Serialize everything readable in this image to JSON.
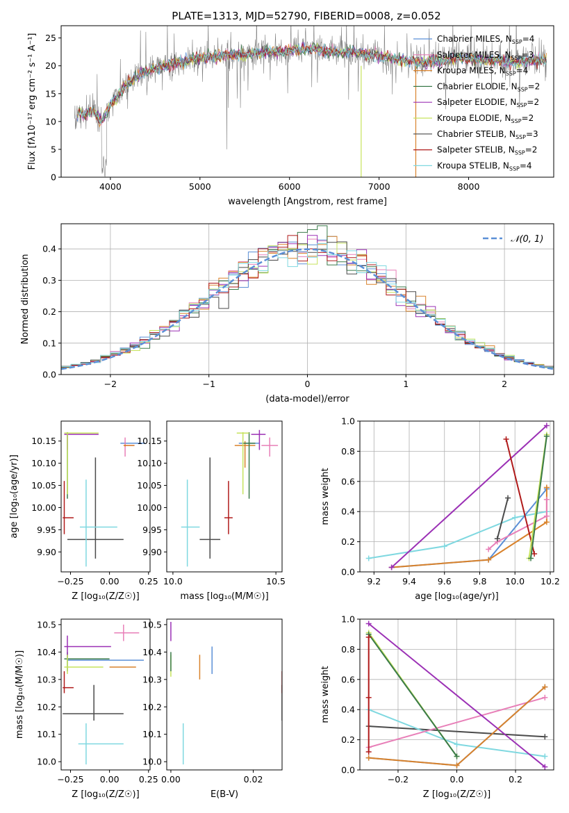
{
  "figure_title": "PLATE=1313, MJD=52790, FIBERID=0008, z=0.052",
  "models": [
    {
      "label": "Chabrier MILES, N",
      "n": "4",
      "color": "#5b8fd6"
    },
    {
      "label": "Salpeter MILES, N",
      "n": "3",
      "color": "#e87fb8"
    },
    {
      "label": "Kroupa MILES, N",
      "n": "4",
      "color": "#d9822b"
    },
    {
      "label": "Chabrier ELODIE, N",
      "n": "2",
      "color": "#3a7a4a"
    },
    {
      "label": "Salpeter ELODIE, N",
      "n": "2",
      "color": "#9b30b5"
    },
    {
      "label": "Kroupa ELODIE, N",
      "n": "2",
      "color": "#c6e35c"
    },
    {
      "label": "Chabrier STELIB, N",
      "n": "3",
      "color": "#4a4a4a"
    },
    {
      "label": "Salpeter STELIB, N",
      "n": "2",
      "color": "#b01a1a"
    },
    {
      "label": "Kroupa STELIB, N",
      "n": "4",
      "color": "#7fd8e0"
    }
  ],
  "legend_sub": "SSP",
  "normal_label": "𝒩(0, 1)",
  "chart_data": [
    {
      "id": "spectrum",
      "type": "line",
      "xlabel": "wavelength [Angstrom, rest frame]",
      "ylabel": "Flux [fλ10⁻¹⁷ erg cm⁻² s⁻¹ A⁻¹]",
      "xlim": [
        3450,
        8950
      ],
      "ylim": [
        0,
        27.2
      ],
      "xticks": [
        4000,
        5000,
        6000,
        7000,
        8000
      ],
      "yticks": [
        0,
        5,
        10,
        15,
        20,
        25
      ],
      "data_color": "#808080",
      "model_nodes": [
        [
          3600,
          9
        ],
        [
          3650,
          12
        ],
        [
          3700,
          11
        ],
        [
          3800,
          12
        ],
        [
          3900,
          10
        ],
        [
          4000,
          13
        ],
        [
          4100,
          15
        ],
        [
          4200,
          17
        ],
        [
          4300,
          18
        ],
        [
          4400,
          19
        ],
        [
          4500,
          19.5
        ],
        [
          4700,
          20.5
        ],
        [
          4900,
          21
        ],
        [
          5100,
          21.5
        ],
        [
          5300,
          22
        ],
        [
          5500,
          22
        ],
        [
          5700,
          22.5
        ],
        [
          5900,
          22.5
        ],
        [
          6100,
          23
        ],
        [
          6300,
          23
        ],
        [
          6500,
          22.5
        ],
        [
          6700,
          22.5
        ],
        [
          6900,
          22
        ],
        [
          7100,
          21.5
        ],
        [
          7300,
          21
        ],
        [
          7500,
          20.5
        ],
        [
          7700,
          21
        ],
        [
          7900,
          21.5
        ],
        [
          8100,
          21
        ],
        [
          8300,
          21
        ],
        [
          8500,
          20.5
        ],
        [
          8700,
          21
        ],
        [
          8850,
          21
        ]
      ],
      "legend": "upper right"
    },
    {
      "id": "residual_hist",
      "type": "step",
      "xlabel": "(data-model)/error",
      "ylabel": "Normed distribution",
      "xlim": [
        -2.5,
        2.5
      ],
      "ylim": [
        0,
        0.48
      ],
      "xticks": [
        -2,
        -1,
        0,
        1,
        2
      ],
      "yticks": [
        0.0,
        0.1,
        0.2,
        0.3,
        0.4
      ],
      "bin_width": 0.1,
      "grid": true,
      "legend": "upper right"
    },
    {
      "id": "age_vs_Z",
      "type": "errorbar",
      "xlabel": "Z [log₁₀(Z/Z☉)]",
      "ylabel": "age  [log₁₀(age/yr)]",
      "xlim": [
        -0.31,
        0.26
      ],
      "ylim": [
        9.855,
        10.195
      ],
      "xticks": [
        -0.25,
        0.0,
        0.25
      ],
      "xticklabels": [
        "−0.25",
        "0.00",
        "0.25"
      ],
      "yticks": [
        9.9,
        9.95,
        10.0,
        10.05,
        10.1,
        10.15
      ],
      "yticklabels": [
        "9.90",
        "9.95",
        "10.00",
        "10.05",
        "10.10",
        "10.15"
      ],
      "points": [
        {
          "m": 0,
          "x": 0.1,
          "xl": 0.07,
          "xh": 0.23,
          "y": 10.145,
          "yl": 10.143,
          "yh": 10.147
        },
        {
          "m": 1,
          "x": 0.1,
          "xl": 0.1,
          "xh": 0.16,
          "y": 10.14,
          "yl": 10.115,
          "yh": 10.158
        },
        {
          "m": 2,
          "x": 0.1,
          "xl": 0.09,
          "xh": 0.16,
          "y": 10.14,
          "yl": 10.138,
          "yh": 10.142
        },
        {
          "m": 3,
          "x": -0.27,
          "xl": -0.29,
          "xh": -0.26,
          "y": 10.168,
          "yl": 10.02,
          "yh": 10.17
        },
        {
          "m": 4,
          "x": -0.27,
          "xl": -0.29,
          "xh": -0.07,
          "y": 10.165,
          "yl": 10.13,
          "yh": 10.17
        },
        {
          "m": 5,
          "x": -0.27,
          "xl": -0.29,
          "xh": -0.07,
          "y": 10.168,
          "yl": 10.03,
          "yh": 10.17
        },
        {
          "m": 6,
          "x": -0.09,
          "xl": -0.27,
          "xh": 0.09,
          "y": 9.928,
          "yl": 9.885,
          "yh": 10.113
        },
        {
          "m": 7,
          "x": -0.29,
          "xl": -0.3,
          "xh": -0.23,
          "y": 9.977,
          "yl": 9.94,
          "yh": 10.06
        },
        {
          "m": 8,
          "x": -0.15,
          "xl": -0.19,
          "xh": 0.05,
          "y": 9.956,
          "yl": 9.867,
          "yh": 10.063
        }
      ]
    },
    {
      "id": "age_vs_mass",
      "type": "errorbar",
      "xlabel": "mass [log₁₀(M/M☉)]",
      "ylabel": "",
      "xlim": [
        9.97,
        10.53
      ],
      "ylim": [
        9.855,
        10.195
      ],
      "xticks": [
        10.0,
        10.5
      ],
      "xticklabels": [
        "10.0",
        "10.5"
      ],
      "yticks": [
        9.9,
        9.95,
        10.0,
        10.05,
        10.1,
        10.15
      ],
      "yticklabels": [
        "9.90",
        "9.95",
        "10.00",
        "10.05",
        "10.10",
        "10.15"
      ],
      "points": [
        {
          "m": 0,
          "x": 10.37,
          "xl": 10.32,
          "xh": 10.42,
          "y": 10.145,
          "yl": 10.143,
          "yh": 10.147
        },
        {
          "m": 1,
          "x": 10.47,
          "xl": 10.43,
          "xh": 10.51,
          "y": 10.14,
          "yl": 10.115,
          "yh": 10.158
        },
        {
          "m": 2,
          "x": 10.35,
          "xl": 10.3,
          "xh": 10.4,
          "y": 10.14,
          "yl": 10.09,
          "yh": 10.15
        },
        {
          "m": 3,
          "x": 10.37,
          "xl": 10.34,
          "xh": 10.4,
          "y": 10.145,
          "yl": 10.02,
          "yh": 10.17
        },
        {
          "m": 4,
          "x": 10.42,
          "xl": 10.38,
          "xh": 10.45,
          "y": 10.165,
          "yl": 10.13,
          "yh": 10.175
        },
        {
          "m": 5,
          "x": 10.34,
          "xl": 10.31,
          "xh": 10.37,
          "y": 10.168,
          "yl": 10.03,
          "yh": 10.17
        },
        {
          "m": 6,
          "x": 10.18,
          "xl": 10.13,
          "xh": 10.23,
          "y": 9.928,
          "yl": 9.885,
          "yh": 10.113
        },
        {
          "m": 7,
          "x": 10.27,
          "xl": 10.25,
          "xh": 10.29,
          "y": 9.977,
          "yl": 9.94,
          "yh": 10.06
        },
        {
          "m": 8,
          "x": 10.07,
          "xl": 10.04,
          "xh": 10.13,
          "y": 9.956,
          "yl": 9.867,
          "yh": 10.063
        }
      ]
    },
    {
      "id": "massweight_vs_age",
      "type": "line",
      "xlabel": "age  [log₁₀(age/yr)]",
      "ylabel": "mass weight",
      "xlim": [
        9.12,
        10.22
      ],
      "ylim": [
        0,
        1.0
      ],
      "xticks": [
        9.2,
        9.4,
        9.6,
        9.8,
        10.0,
        10.2
      ],
      "xticklabels": [
        "9.2",
        "9.4",
        "9.6",
        "9.8",
        "10.0",
        "10.2"
      ],
      "yticks": [
        0,
        0.2,
        0.4,
        0.6,
        0.8,
        1.0
      ],
      "yticklabels": [
        "0.0",
        "0.2",
        "0.4",
        "0.6",
        "0.8",
        "1.0"
      ],
      "grid": true,
      "series": [
        {
          "m": 8,
          "x": [
            9.17,
            9.6,
            10.0,
            10.18
          ],
          "y": [
            0.09,
            0.17,
            0.36,
            0.4
          ]
        },
        {
          "m": 0,
          "x": [
            9.3,
            9.85,
            10.18
          ],
          "y": [
            0.03,
            0.08,
            0.55
          ]
        },
        {
          "m": 2,
          "x": [
            9.3,
            9.85,
            10.18,
            10.18
          ],
          "y": [
            0.03,
            0.08,
            0.33,
            0.56
          ]
        },
        {
          "m": 1,
          "x": [
            9.85,
            9.9,
            10.18,
            10.18
          ],
          "y": [
            0.15,
            0.2,
            0.37,
            0.48
          ]
        },
        {
          "m": 6,
          "x": [
            9.9,
            9.96
          ],
          "y": [
            0.22,
            0.49
          ]
        },
        {
          "m": 4,
          "x": [
            9.3,
            10.18
          ],
          "y": [
            0.03,
            0.97
          ]
        },
        {
          "m": 7,
          "x": [
            9.95,
            10.11
          ],
          "y": [
            0.88,
            0.12
          ]
        },
        {
          "m": 5,
          "x": [
            10.08,
            10.18
          ],
          "y": [
            0.09,
            0.91
          ]
        },
        {
          "m": 3,
          "x": [
            10.09,
            10.18
          ],
          "y": [
            0.09,
            0.9
          ]
        }
      ]
    },
    {
      "id": "mass_vs_Z",
      "type": "errorbar",
      "xlabel": "Z [log₁₀(Z/Z☉)]",
      "ylabel": "mass [log₁₀(M/M☉)]",
      "xlim": [
        -0.31,
        0.26
      ],
      "ylim": [
        9.97,
        10.52
      ],
      "xticks": [
        -0.25,
        0.0,
        0.25
      ],
      "xticklabels": [
        "−0.25",
        "0.00",
        "0.25"
      ],
      "yticks": [
        10.0,
        10.1,
        10.2,
        10.3,
        10.4,
        10.5
      ],
      "yticklabels": [
        "10.0",
        "10.1",
        "10.2",
        "10.3",
        "10.4",
        "10.5"
      ],
      "points": [
        {
          "m": 0,
          "x": 0.0,
          "xl": -0.27,
          "xh": 0.22,
          "y": 10.37,
          "yl": 10.37,
          "yh": 10.37
        },
        {
          "m": 1,
          "x": 0.09,
          "xl": 0.03,
          "xh": 0.19,
          "y": 10.47,
          "yl": 10.44,
          "yh": 10.5
        },
        {
          "m": 2,
          "x": 0.08,
          "xl": 0.0,
          "xh": 0.17,
          "y": 10.345,
          "yl": 10.345,
          "yh": 10.345
        },
        {
          "m": 3,
          "x": -0.27,
          "xl": -0.29,
          "xh": 0.0,
          "y": 10.375,
          "yl": 10.33,
          "yh": 10.4
        },
        {
          "m": 4,
          "x": -0.27,
          "xl": -0.29,
          "xh": 0.01,
          "y": 10.42,
          "yl": 10.38,
          "yh": 10.46
        },
        {
          "m": 5,
          "x": -0.27,
          "xl": -0.29,
          "xh": -0.04,
          "y": 10.345,
          "yl": 10.32,
          "yh": 10.39
        },
        {
          "m": 6,
          "x": -0.1,
          "xl": -0.3,
          "xh": 0.09,
          "y": 10.175,
          "yl": 10.15,
          "yh": 10.28
        },
        {
          "m": 7,
          "x": -0.29,
          "xl": -0.3,
          "xh": -0.23,
          "y": 10.27,
          "yl": 10.25,
          "yh": 10.33
        },
        {
          "m": 8,
          "x": -0.15,
          "xl": -0.2,
          "xh": 0.09,
          "y": 10.065,
          "yl": 9.99,
          "yh": 10.14
        }
      ]
    },
    {
      "id": "mass_vs_EBV",
      "type": "errorbar",
      "xlabel": "E(B-V)",
      "ylabel": "",
      "xlim": [
        -0.001,
        0.027
      ],
      "ylim": [
        9.97,
        10.52
      ],
      "xticks": [
        0.0,
        0.02
      ],
      "xticklabels": [
        "0.00",
        "0.02"
      ],
      "yticks": [
        10.0,
        10.1,
        10.2,
        10.3,
        10.4,
        10.5
      ],
      "yticklabels": [
        "10.0",
        "10.1",
        "10.2",
        "10.3",
        "10.4",
        "10.5"
      ],
      "points": [
        {
          "m": 0,
          "x": 0.01,
          "xl": 0.01,
          "xh": 0.01,
          "y": 10.37,
          "yl": 10.32,
          "yh": 10.42
        },
        {
          "m": 2,
          "x": 0.007,
          "xl": 0.007,
          "xh": 0.007,
          "y": 10.345,
          "yl": 10.3,
          "yh": 10.39
        },
        {
          "m": 4,
          "x": 0.0,
          "xl": 0.0,
          "xh": 0.0,
          "y": 10.47,
          "yl": 10.44,
          "yh": 10.51
        },
        {
          "m": 5,
          "x": 0.0,
          "xl": 0.0,
          "xh": 0.0,
          "y": 10.345,
          "yl": 10.31,
          "yh": 10.39
        },
        {
          "m": 3,
          "x": 0.0,
          "xl": 0.0,
          "xh": 0.0,
          "y": 10.375,
          "yl": 10.33,
          "yh": 10.4
        },
        {
          "m": 6,
          "x": 0.027,
          "xl": 0.027,
          "xh": 0.027,
          "y": 10.2,
          "yl": 10.15,
          "yh": 10.28
        },
        {
          "m": 7,
          "x": 0.027,
          "xl": 0.027,
          "xh": 0.027,
          "y": 10.29,
          "yl": 10.25,
          "yh": 10.33
        },
        {
          "m": 8,
          "x": 0.003,
          "xl": 0.003,
          "xh": 0.003,
          "y": 10.065,
          "yl": 9.99,
          "yh": 10.14
        }
      ]
    },
    {
      "id": "massweight_vs_Z",
      "type": "line",
      "xlabel": "Z [log₁₀(Z/Z☉)]",
      "ylabel": "mass weight",
      "xlim": [
        -0.33,
        0.33
      ],
      "ylim": [
        0,
        1.0
      ],
      "xticks": [
        -0.2,
        0.0,
        0.2
      ],
      "xticklabels": [
        "−0.2",
        "0.0",
        "0.2"
      ],
      "yticks": [
        0,
        0.2,
        0.4,
        0.6,
        0.8,
        1.0
      ],
      "yticklabels": [
        "0.0",
        "0.2",
        "0.4",
        "0.6",
        "0.8",
        "1.0"
      ],
      "grid": true,
      "series": [
        {
          "m": 6,
          "x": [
            -0.3,
            0.3
          ],
          "y": [
            0.29,
            0.22
          ]
        },
        {
          "m": 8,
          "x": [
            -0.3,
            0.0,
            0.3
          ],
          "y": [
            0.4,
            0.17,
            0.09
          ]
        },
        {
          "m": 1,
          "x": [
            -0.3,
            0.3
          ],
          "y": [
            0.15,
            0.48
          ]
        },
        {
          "m": 0,
          "x": [
            -0.3,
            0.0,
            0.3
          ],
          "y": [
            0.08,
            0.03,
            0.55
          ]
        },
        {
          "m": 2,
          "x": [
            -0.3,
            0.0,
            0.3
          ],
          "y": [
            0.08,
            0.03,
            0.55
          ]
        },
        {
          "m": 4,
          "x": [
            -0.3,
            0.3
          ],
          "y": [
            0.97,
            0.02
          ]
        },
        {
          "m": 5,
          "x": [
            -0.3,
            0.0
          ],
          "y": [
            0.91,
            0.09
          ]
        },
        {
          "m": 3,
          "x": [
            -0.3,
            0.0
          ],
          "y": [
            0.9,
            0.09
          ]
        },
        {
          "m": 7,
          "x": [
            -0.3,
            -0.3,
            -0.3
          ],
          "y": [
            0.88,
            0.48,
            0.12
          ]
        }
      ]
    }
  ]
}
